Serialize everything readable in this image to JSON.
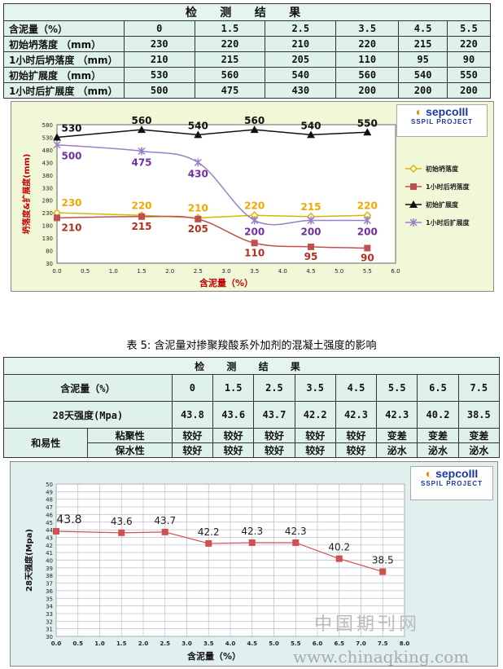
{
  "table1": {
    "title": "检 测 结 果",
    "rows": [
      {
        "label": "含泥量（%）",
        "cells": [
          "0",
          "1.5",
          "2.5",
          "3.5",
          "4.5",
          "5.5"
        ]
      },
      {
        "label": "初始坍落度 （mm）",
        "cells": [
          "230",
          "220",
          "210",
          "220",
          "215",
          "220"
        ]
      },
      {
        "label": "1小时后坍落度 （mm）",
        "cells": [
          "210",
          "215",
          "205",
          "110",
          "95",
          "90"
        ]
      },
      {
        "label": "初始扩展度 （mm）",
        "cells": [
          "530",
          "560",
          "540",
          "560",
          "540",
          "550"
        ]
      },
      {
        "label": "1小时后扩展度 （mm）",
        "cells": [
          "500",
          "475",
          "430",
          "200",
          "200",
          "200"
        ]
      }
    ]
  },
  "caption": "表 5: 含泥量对掺聚羧酸系外加剂的混凝土强度的影响",
  "table2": {
    "title": "检 测 结 果",
    "header_label": "含泥量（%）",
    "header_cells": [
      "0",
      "1.5",
      "2.5",
      "3.5",
      "4.5",
      "5.5",
      "6.5",
      "7.5"
    ],
    "strength_label": "28天强度(Mpa)",
    "strength_cells": [
      "43.8",
      "43.6",
      "43.7",
      "42.2",
      "42.3",
      "42.3",
      "40.2",
      "38.5"
    ],
    "workability_label": "和易性",
    "cohesion_label": "粘聚性",
    "cohesion_cells": [
      "较好",
      "较好",
      "较好",
      "较好",
      "较好",
      "变差",
      "变差",
      "变差"
    ],
    "water_label": "保水性",
    "water_cells": [
      "较好",
      "较好",
      "较好",
      "较好",
      "较好",
      "泌水",
      "泌水",
      "泌水"
    ]
  },
  "logo": {
    "brand": "sepco",
    "brand_suffix": "III",
    "sub": "SSPIL PROJECT"
  },
  "watermark": {
    "cn": "中国期刊网",
    "url": "www.chinaqking.com"
  },
  "chart_data": [
    {
      "type": "line",
      "xlabel": "含泥量（%）",
      "ylabel": "坍落度&扩展度(mm)",
      "xlim": [
        0,
        6
      ],
      "xticks": [
        "0.0",
        "0.5",
        "1.0",
        "1.5",
        "2.0",
        "2.5",
        "3.0",
        "3.5",
        "4.0",
        "4.5",
        "5.0",
        "5.5",
        "6.0"
      ],
      "ylim": [
        30,
        580
      ],
      "yticks": [
        "30",
        "80",
        "130",
        "180",
        "230",
        "280",
        "330",
        "380",
        "430",
        "480",
        "530",
        "580"
      ],
      "x": [
        0,
        1.5,
        2.5,
        3.5,
        4.5,
        5.5
      ],
      "legend": "right",
      "series": [
        {
          "name": "初始坍落度",
          "values": [
            230,
            220,
            210,
            220,
            215,
            220
          ],
          "color": "#d4b800",
          "marker": "diamond",
          "smooth": false
        },
        {
          "name": "1小时后坍落度",
          "values": [
            210,
            215,
            205,
            110,
            95,
            90
          ],
          "color": "#c0504d",
          "marker": "square",
          "smooth": true
        },
        {
          "name": "初始扩展度",
          "values": [
            530,
            560,
            540,
            560,
            540,
            550
          ],
          "color": "#111111",
          "marker": "triangle",
          "smooth": false
        },
        {
          "name": "1小时后扩展度",
          "values": [
            500,
            475,
            430,
            200,
            200,
            200
          ],
          "color": "#9a7fc8",
          "marker": "x",
          "smooth": true
        }
      ],
      "label_colors": [
        "#f0a800",
        "#b03020",
        "#111111",
        "#7030a0"
      ]
    },
    {
      "type": "line",
      "xlabel": "含泥量（%）",
      "ylabel": "28天强度(Mpa)",
      "xlim": [
        0,
        8
      ],
      "xticks": [
        "0.0",
        "0.5",
        "1.0",
        "1.5",
        "2.0",
        "2.5",
        "3.0",
        "3.5",
        "4.0",
        "4.5",
        "5.0",
        "5.5",
        "6.0",
        "6.5",
        "7.0",
        "7.5",
        "8.0"
      ],
      "ylim": [
        30,
        50
      ],
      "yticks": [
        "30",
        "31",
        "32",
        "33",
        "34",
        "35",
        "36",
        "37",
        "38",
        "39",
        "40",
        "41",
        "42",
        "43",
        "44",
        "45",
        "46",
        "47",
        "48",
        "49",
        "50"
      ],
      "grid": true,
      "x": [
        0,
        1.5,
        2.5,
        3.5,
        4.5,
        5.5,
        6.5,
        7.5
      ],
      "series": [
        {
          "values": [
            43.8,
            43.6,
            43.7,
            42.2,
            42.3,
            42.3,
            40.2,
            38.5
          ],
          "color": "#d05050"
        }
      ]
    }
  ]
}
